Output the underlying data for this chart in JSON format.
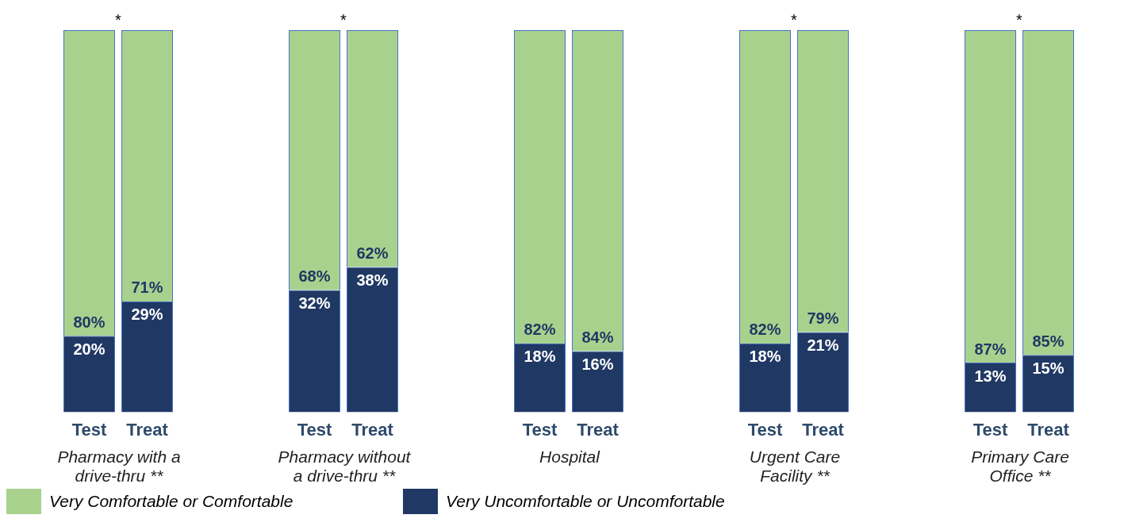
{
  "chart_data": [
    {
      "type": "bar",
      "stacked": true,
      "categories": [
        "Test",
        "Treat"
      ],
      "xlabel": "Pharmacy with a drive-thru **",
      "annotations": [
        "*"
      ],
      "tick_labels": "x",
      "grid": false,
      "legend": "bottom",
      "series": [
        {
          "name": "Very Uncomfortable or Uncomfortable",
          "color": "#203864",
          "values": [
            20,
            29
          ],
          "value_labels": [
            "20%",
            "29%"
          ]
        },
        {
          "name": "Very Comfortable or Comfortable",
          "color": "#a9d18e",
          "values": [
            80,
            71
          ],
          "value_labels": [
            "80%",
            "71%"
          ]
        }
      ]
    },
    {
      "type": "bar",
      "stacked": true,
      "categories": [
        "Test",
        "Treat"
      ],
      "xlabel": "Pharmacy without a drive-thru **",
      "annotations": [
        "*"
      ],
      "tick_labels": "x",
      "grid": false,
      "series": [
        {
          "color": "#203864",
          "values": [
            32,
            38
          ],
          "value_labels": [
            "32%",
            "38%"
          ]
        },
        {
          "color": "#a9d18e",
          "values": [
            68,
            62
          ],
          "value_labels": [
            "68%",
            "62%"
          ]
        }
      ]
    },
    {
      "type": "bar",
      "stacked": true,
      "categories": [
        "Test",
        "Treat"
      ],
      "xlabel": "Hospital",
      "tick_labels": "x",
      "grid": false,
      "series": [
        {
          "color": "#203864",
          "values": [
            18,
            16
          ],
          "value_labels": [
            "18%",
            "16%"
          ]
        },
        {
          "color": "#a9d18e",
          "values": [
            82,
            84
          ],
          "value_labels": [
            "82%",
            "84%"
          ]
        }
      ]
    },
    {
      "type": "bar",
      "stacked": true,
      "categories": [
        "Test",
        "Treat"
      ],
      "xlabel": "Urgent Care Facility **",
      "annotations": [
        "*"
      ],
      "tick_labels": "x",
      "grid": false,
      "series": [
        {
          "color": "#203864",
          "values": [
            18,
            21
          ],
          "value_labels": [
            "18%",
            "21%"
          ]
        },
        {
          "color": "#a9d18e",
          "values": [
            82,
            79
          ],
          "value_labels": [
            "82%",
            "79%"
          ]
        }
      ]
    },
    {
      "type": "bar",
      "stacked": true,
      "categories": [
        "Test",
        "Treat"
      ],
      "xlabel": "Primary Care Office **",
      "annotations": [
        "*"
      ],
      "tick_labels": "x",
      "grid": false,
      "series": [
        {
          "color": "#203864",
          "values": [
            13,
            15
          ],
          "value_labels": [
            "13%",
            "15%"
          ]
        },
        {
          "color": "#a9d18e",
          "values": [
            87,
            85
          ],
          "value_labels": [
            "87%",
            "85%"
          ]
        }
      ]
    }
  ]
}
